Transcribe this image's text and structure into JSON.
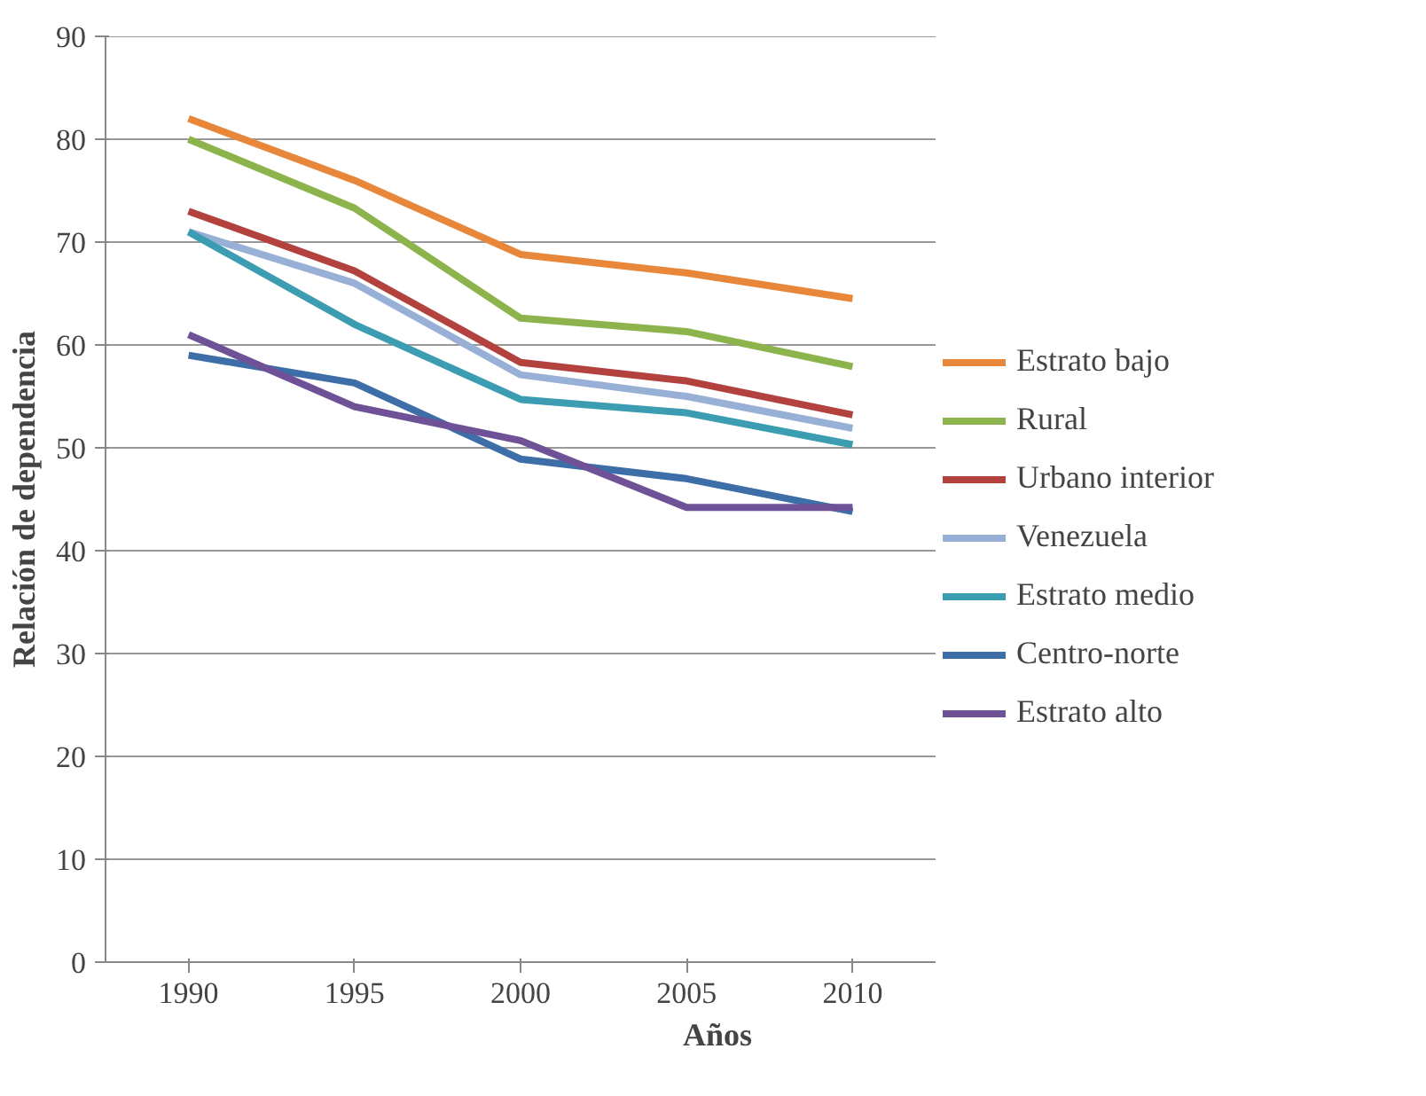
{
  "chart_data": {
    "type": "line",
    "xlabel": "Años",
    "ylabel": "Relación de dependencia",
    "categories": [
      "1990",
      "1995",
      "2000",
      "2005",
      "2010"
    ],
    "ylim": [
      0,
      90
    ],
    "yticks": [
      0,
      10,
      20,
      30,
      40,
      50,
      60,
      70,
      80,
      90
    ],
    "grid": "y",
    "legend": "right",
    "marker": "none",
    "series": [
      {
        "name": "Estrato bajo",
        "color": "#e8873a",
        "values": [
          82,
          76,
          68.8,
          67,
          64.5
        ]
      },
      {
        "name": "Rural",
        "color": "#8db44c",
        "values": [
          80,
          73.3,
          62.6,
          61.3,
          57.9
        ]
      },
      {
        "name": "Urbano interior",
        "color": "#b3423f",
        "values": [
          73,
          67.2,
          58.3,
          56.5,
          53.2
        ]
      },
      {
        "name": "Venezuela",
        "color": "#98afd6",
        "values": [
          71,
          66,
          57.1,
          55,
          51.9
        ]
      },
      {
        "name": "Estrato medio",
        "color": "#3c9db2",
        "values": [
          71,
          62,
          54.7,
          53.4,
          50.3
        ]
      },
      {
        "name": "Centro-norte",
        "color": "#3d6ea8",
        "values": [
          59,
          56.3,
          48.9,
          47,
          43.8
        ]
      },
      {
        "name": "Estrato alto",
        "color": "#6e5196",
        "values": [
          61,
          54,
          50.7,
          44.2,
          44.2
        ]
      }
    ]
  }
}
